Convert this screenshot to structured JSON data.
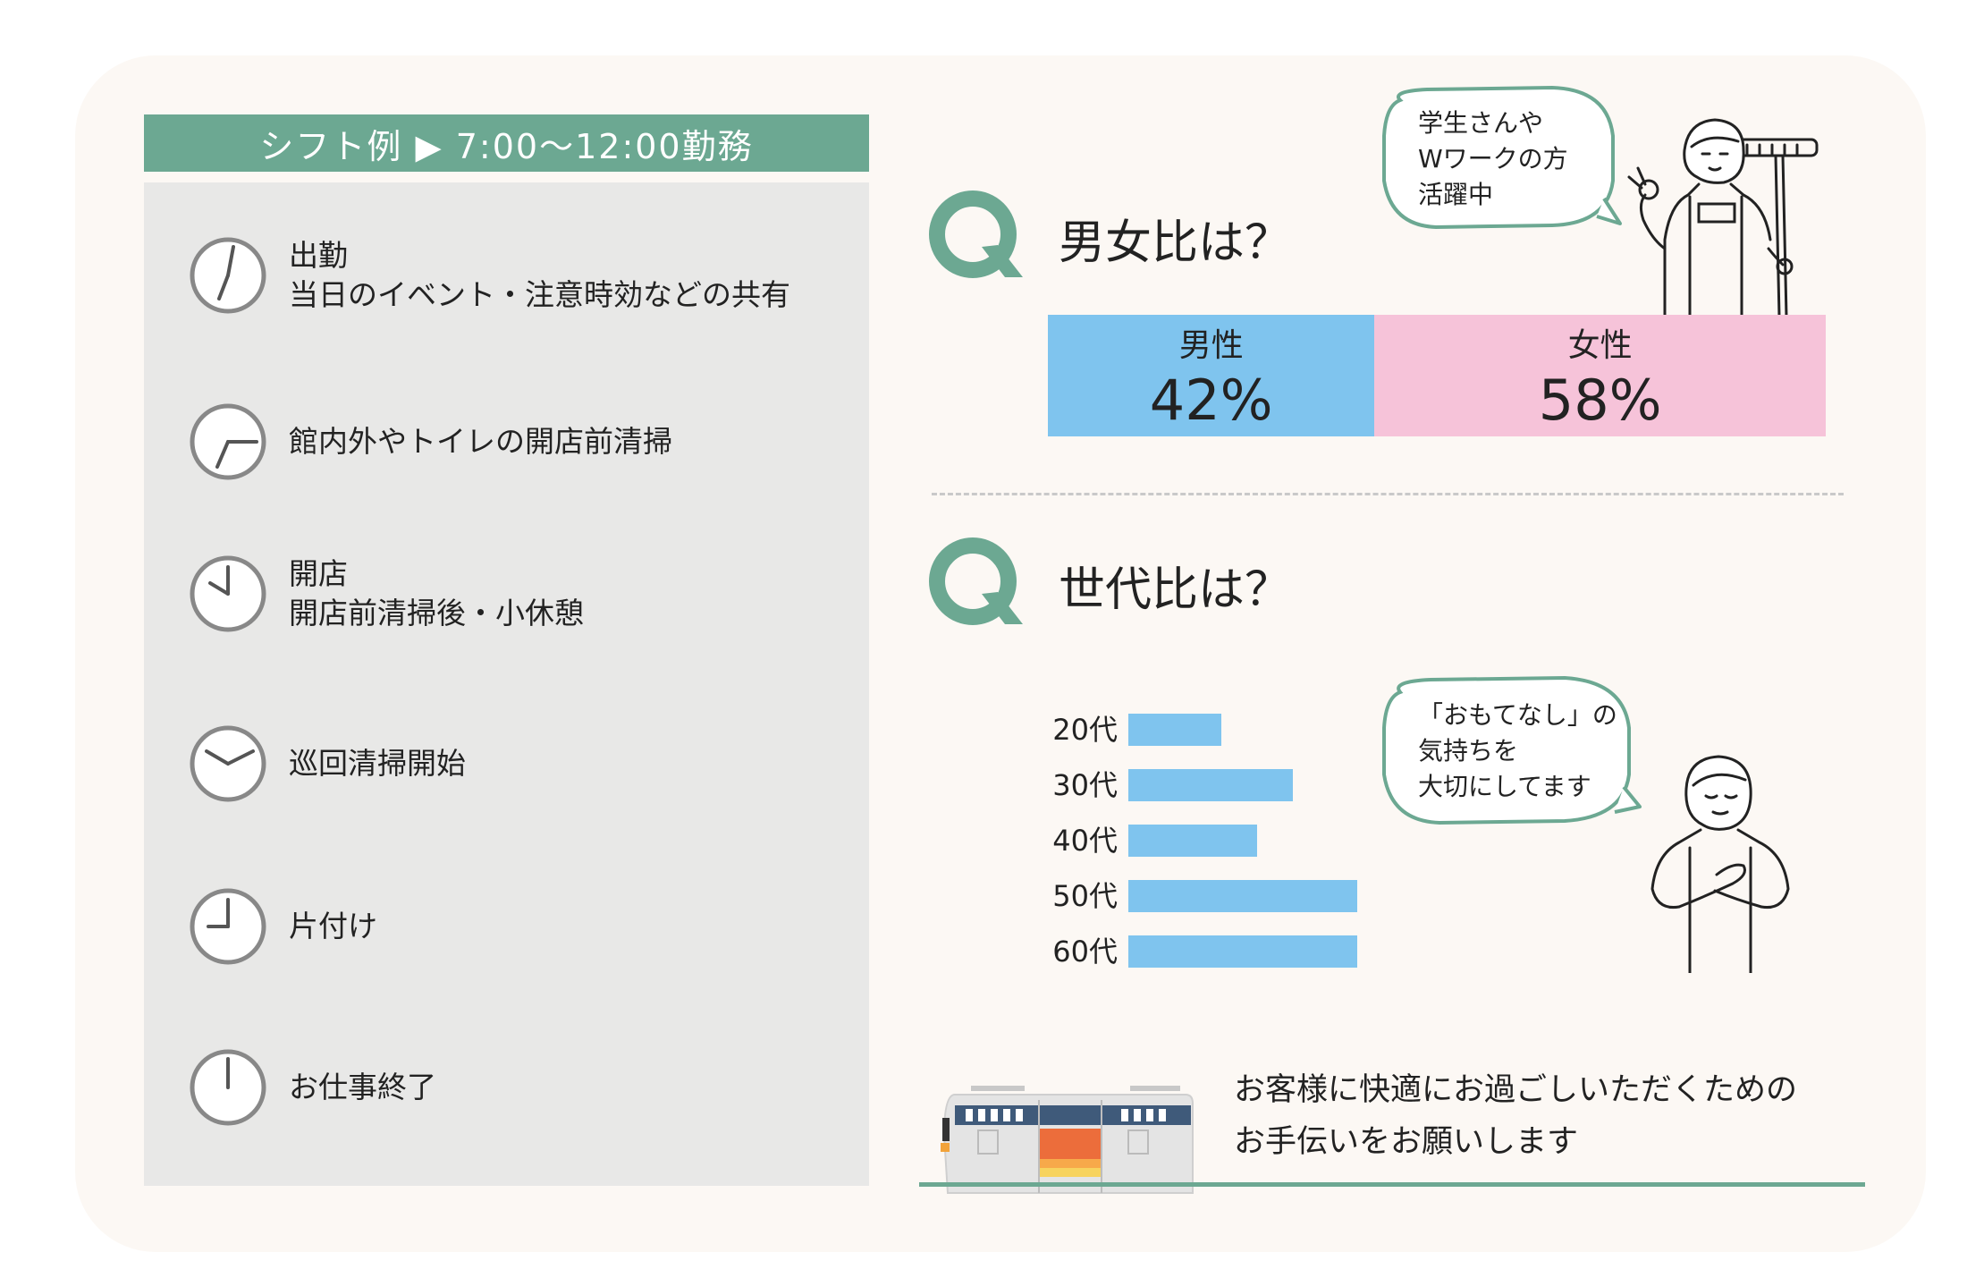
{
  "shift": {
    "header": "シフト例 ▶ 7:00〜12:00勤務",
    "steps": [
      {
        "line1": "出勤",
        "line2": "当日のイベント・注意時効などの共有",
        "icon": "clock-icon"
      },
      {
        "line1": "館内外やトイレの開店前清掃",
        "line2": "",
        "icon": "clock-icon"
      },
      {
        "line1": "開店",
        "line2": "開店前清掃後・小休憩",
        "icon": "clock-icon"
      },
      {
        "line1": "巡回清掃開始",
        "line2": "",
        "icon": "clock-icon"
      },
      {
        "line1": "片付け",
        "line2": "",
        "icon": "clock-icon"
      },
      {
        "line1": "お仕事終了",
        "line2": "",
        "icon": "clock-icon"
      }
    ]
  },
  "gender": {
    "question": "男女比は？",
    "bubble": [
      "学生さんや",
      "Wワークの方",
      "活躍中"
    ],
    "male_label": "男性",
    "male_value": "42%",
    "female_label": "女性",
    "female_value": "58%"
  },
  "age": {
    "question": "世代比は？",
    "bubble": [
      "「おもてなし」の",
      "気持ちを",
      "大切にしてます"
    ]
  },
  "footer": {
    "line1": "お客様に快適にお過ごしいただくための",
    "line2": "お手伝いをお願いします"
  },
  "colors": {
    "accent_green": "#6ca892",
    "male_blue": "#7fc4ee",
    "female_pink": "#f6c3d9",
    "bar_blue": "#7fc4ee",
    "panel_gray": "#e8e8e7"
  },
  "chart_data": [
    {
      "type": "bar",
      "title": "男女比は？",
      "categories": [
        "男性",
        "女性"
      ],
      "values": [
        42,
        58
      ],
      "unit": "%"
    },
    {
      "type": "bar",
      "orientation": "horizontal",
      "title": "世代比は？",
      "categories": [
        "20代",
        "30代",
        "40代",
        "50代",
        "60代"
      ],
      "values": [
        13,
        23,
        18,
        32,
        32
      ],
      "unit": "%"
    }
  ]
}
